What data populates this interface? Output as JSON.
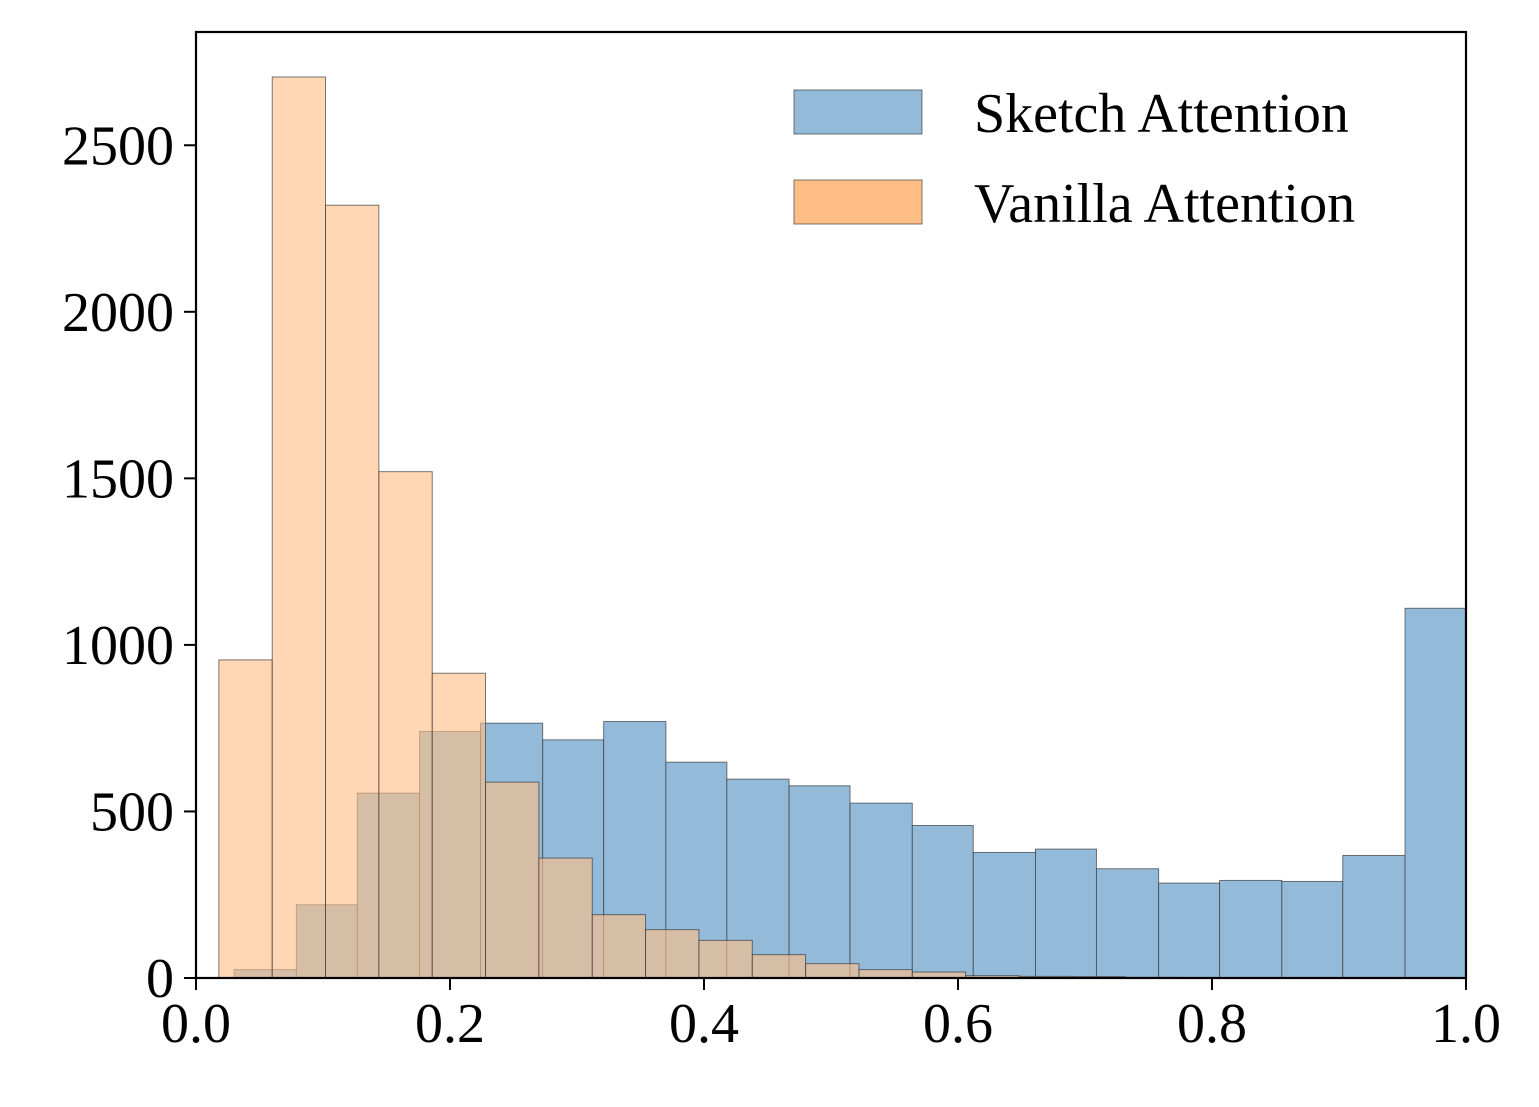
{
  "chart_data": {
    "type": "histogram",
    "title": "",
    "xlabel": "",
    "ylabel": "",
    "xlim": [
      0.0,
      1.0
    ],
    "ylim": [
      0,
      2840
    ],
    "xticks": [
      0.0,
      0.2,
      0.4,
      0.6,
      0.8,
      1.0
    ],
    "xtick_labels": [
      "0.0",
      "0.2",
      "0.4",
      "0.6",
      "0.8",
      "1.0"
    ],
    "yticks": [
      0,
      500,
      1000,
      1500,
      2000,
      2500
    ],
    "ytick_labels": [
      "0",
      "500",
      "1000",
      "1500",
      "2000",
      "2500"
    ],
    "grid": false,
    "legend_position": "top-right",
    "series": [
      {
        "name": "Sketch Attention",
        "color": "#93bad9",
        "bins": [
          {
            "x0": 0.03,
            "x1": 0.079,
            "count": 25
          },
          {
            "x0": 0.079,
            "x1": 0.127,
            "count": 220
          },
          {
            "x0": 0.127,
            "x1": 0.176,
            "count": 555
          },
          {
            "x0": 0.176,
            "x1": 0.224,
            "count": 740
          },
          {
            "x0": 0.224,
            "x1": 0.273,
            "count": 765
          },
          {
            "x0": 0.273,
            "x1": 0.321,
            "count": 715
          },
          {
            "x0": 0.321,
            "x1": 0.37,
            "count": 770
          },
          {
            "x0": 0.37,
            "x1": 0.418,
            "count": 648
          },
          {
            "x0": 0.418,
            "x1": 0.467,
            "count": 597
          },
          {
            "x0": 0.467,
            "x1": 0.515,
            "count": 577
          },
          {
            "x0": 0.515,
            "x1": 0.564,
            "count": 525
          },
          {
            "x0": 0.564,
            "x1": 0.612,
            "count": 458
          },
          {
            "x0": 0.612,
            "x1": 0.661,
            "count": 377
          },
          {
            "x0": 0.661,
            "x1": 0.709,
            "count": 387
          },
          {
            "x0": 0.709,
            "x1": 0.758,
            "count": 328
          },
          {
            "x0": 0.758,
            "x1": 0.806,
            "count": 285
          },
          {
            "x0": 0.806,
            "x1": 0.855,
            "count": 293
          },
          {
            "x0": 0.855,
            "x1": 0.903,
            "count": 290
          },
          {
            "x0": 0.903,
            "x1": 0.952,
            "count": 368
          },
          {
            "x0": 0.952,
            "x1": 1.0,
            "count": 1110
          }
        ]
      },
      {
        "name": "Vanilla Attention",
        "color": "#ffbe86",
        "bins": [
          {
            "x0": 0.018,
            "x1": 0.06,
            "count": 955
          },
          {
            "x0": 0.06,
            "x1": 0.102,
            "count": 2705
          },
          {
            "x0": 0.102,
            "x1": 0.144,
            "count": 2320
          },
          {
            "x0": 0.144,
            "x1": 0.186,
            "count": 1520
          },
          {
            "x0": 0.186,
            "x1": 0.228,
            "count": 915
          },
          {
            "x0": 0.228,
            "x1": 0.27,
            "count": 588
          },
          {
            "x0": 0.27,
            "x1": 0.312,
            "count": 360
          },
          {
            "x0": 0.312,
            "x1": 0.354,
            "count": 190
          },
          {
            "x0": 0.354,
            "x1": 0.396,
            "count": 145
          },
          {
            "x0": 0.396,
            "x1": 0.438,
            "count": 113
          },
          {
            "x0": 0.438,
            "x1": 0.48,
            "count": 70
          },
          {
            "x0": 0.48,
            "x1": 0.522,
            "count": 43
          },
          {
            "x0": 0.522,
            "x1": 0.564,
            "count": 25
          },
          {
            "x0": 0.564,
            "x1": 0.606,
            "count": 18
          },
          {
            "x0": 0.606,
            "x1": 0.648,
            "count": 7
          },
          {
            "x0": 0.648,
            "x1": 0.69,
            "count": 5
          },
          {
            "x0": 0.69,
            "x1": 0.732,
            "count": 4
          },
          {
            "x0": 0.732,
            "x1": 0.774,
            "count": 2
          }
        ]
      }
    ]
  }
}
